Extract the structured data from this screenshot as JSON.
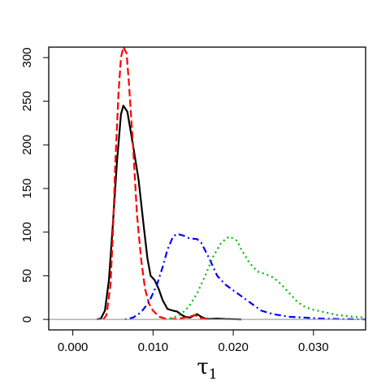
{
  "chart_data": {
    "type": "line",
    "title": "",
    "xlabel": "τ",
    "xlabel_subscript": "1",
    "ylabel": "",
    "xlim": [
      -0.003,
      0.0365
    ],
    "ylim": [
      -12,
      312
    ],
    "x_ticks": [
      0.0,
      0.01,
      0.02,
      0.03
    ],
    "x_tick_labels": [
      "0.000",
      "0.010",
      "0.020",
      "0.030"
    ],
    "y_ticks": [
      0,
      50,
      100,
      150,
      200,
      250,
      300
    ],
    "y_tick_labels": [
      "0",
      "50",
      "100",
      "150",
      "200",
      "250",
      "300"
    ],
    "grid": false,
    "legend": "none",
    "baseline": {
      "y": 0,
      "color": "#a0a0a0"
    },
    "series": [
      {
        "color": "#000000",
        "dash": "solid",
        "points": [
          [
            0.003,
            0
          ],
          [
            0.0035,
            1
          ],
          [
            0.004,
            10
          ],
          [
            0.0045,
            45
          ],
          [
            0.005,
            110
          ],
          [
            0.0055,
            180
          ],
          [
            0.006,
            235
          ],
          [
            0.0063,
            245
          ],
          [
            0.0068,
            238
          ],
          [
            0.0075,
            200
          ],
          [
            0.0082,
            160
          ],
          [
            0.0088,
            110
          ],
          [
            0.0093,
            70
          ],
          [
            0.0097,
            50
          ],
          [
            0.0102,
            45
          ],
          [
            0.0107,
            35
          ],
          [
            0.0112,
            22
          ],
          [
            0.0118,
            12
          ],
          [
            0.0125,
            10
          ],
          [
            0.013,
            9
          ],
          [
            0.0136,
            5
          ],
          [
            0.014,
            3
          ],
          [
            0.0146,
            2
          ],
          [
            0.015,
            4
          ],
          [
            0.0155,
            6
          ],
          [
            0.016,
            3
          ],
          [
            0.0165,
            1
          ],
          [
            0.017,
            0.5
          ],
          [
            0.018,
            1
          ],
          [
            0.019,
            0.5
          ],
          [
            0.02,
            0.3
          ],
          [
            0.021,
            0
          ]
        ]
      },
      {
        "color": "#ff0000",
        "dash": "dashed",
        "points": [
          [
            0.0038,
            0
          ],
          [
            0.0042,
            5
          ],
          [
            0.0047,
            40
          ],
          [
            0.005,
            100
          ],
          [
            0.0053,
            180
          ],
          [
            0.0057,
            260
          ],
          [
            0.006,
            300
          ],
          [
            0.0063,
            312
          ],
          [
            0.0067,
            305
          ],
          [
            0.007,
            270
          ],
          [
            0.0075,
            200
          ],
          [
            0.008,
            120
          ],
          [
            0.0085,
            70
          ],
          [
            0.009,
            35
          ],
          [
            0.0095,
            18
          ],
          [
            0.01,
            10
          ],
          [
            0.0108,
            3
          ],
          [
            0.0115,
            1
          ],
          [
            0.013,
            0.5
          ],
          [
            0.0145,
            3
          ],
          [
            0.0152,
            5
          ],
          [
            0.0158,
            2
          ],
          [
            0.0165,
            0.5
          ],
          [
            0.017,
            0
          ]
        ]
      },
      {
        "color": "#0000ff",
        "dash": "dashdot",
        "points": [
          [
            0.0065,
            0
          ],
          [
            0.0075,
            2
          ],
          [
            0.0085,
            8
          ],
          [
            0.0095,
            20
          ],
          [
            0.0105,
            40
          ],
          [
            0.0112,
            60
          ],
          [
            0.0118,
            80
          ],
          [
            0.0125,
            95
          ],
          [
            0.013,
            98
          ],
          [
            0.0138,
            96
          ],
          [
            0.0145,
            93
          ],
          [
            0.0155,
            92
          ],
          [
            0.016,
            88
          ],
          [
            0.017,
            70
          ],
          [
            0.018,
            50
          ],
          [
            0.019,
            40
          ],
          [
            0.0205,
            30
          ],
          [
            0.022,
            20
          ],
          [
            0.0235,
            10
          ],
          [
            0.025,
            6
          ],
          [
            0.027,
            3
          ],
          [
            0.029,
            2
          ],
          [
            0.031,
            1
          ],
          [
            0.033,
            0.5
          ],
          [
            0.035,
            0.2
          ],
          [
            0.0365,
            0
          ]
        ]
      },
      {
        "color": "#00bb00",
        "dash": "dotted",
        "points": [
          [
            0.0115,
            0
          ],
          [
            0.0125,
            2
          ],
          [
            0.0135,
            6
          ],
          [
            0.0145,
            15
          ],
          [
            0.0155,
            30
          ],
          [
            0.0165,
            50
          ],
          [
            0.0175,
            72
          ],
          [
            0.0185,
            88
          ],
          [
            0.0195,
            95
          ],
          [
            0.0205,
            90
          ],
          [
            0.021,
            80
          ],
          [
            0.022,
            65
          ],
          [
            0.023,
            55
          ],
          [
            0.024,
            52
          ],
          [
            0.025,
            48
          ],
          [
            0.026,
            40
          ],
          [
            0.027,
            30
          ],
          [
            0.028,
            20
          ],
          [
            0.029,
            14
          ],
          [
            0.03,
            11
          ],
          [
            0.031,
            9
          ],
          [
            0.032,
            7
          ],
          [
            0.033,
            5
          ],
          [
            0.034,
            4
          ],
          [
            0.035,
            3
          ],
          [
            0.0365,
            2
          ]
        ]
      }
    ]
  }
}
